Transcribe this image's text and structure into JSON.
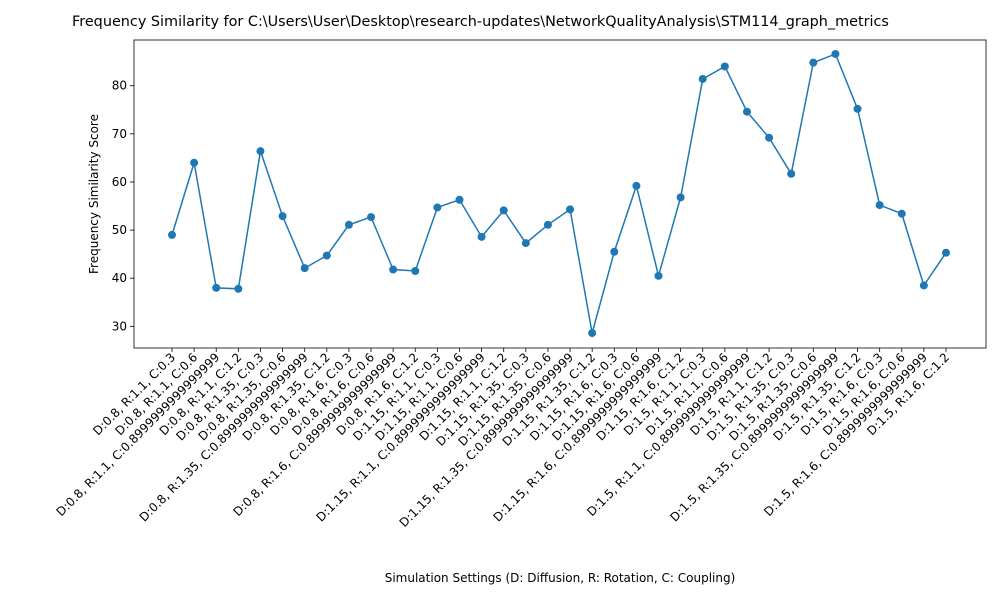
{
  "chart_data": {
    "type": "line",
    "title": "Frequency Similarity for C:\\Users\\User\\Desktop\\research-updates\\NetworkQualityAnalysis\\STM114_graph_metrics",
    "xlabel": "Simulation Settings (D: Diffusion, R: Rotation, C: Coupling)",
    "ylabel": "Frequency Similarity Score",
    "ylim": [
      25.5,
      89.5
    ],
    "yticks": [
      30,
      40,
      50,
      60,
      70,
      80
    ],
    "grid": false,
    "legend": "none",
    "line_color": "#1f77b4",
    "marker": "circle",
    "categories": [
      "D:0.8, R:1.1, C:0.3",
      "D:0.8, R:1.1, C:0.6",
      "D:0.8, R:1.1, C:0.8999999999999999",
      "D:0.8, R:1.1, C:1.2",
      "D:0.8, R:1.35, C:0.3",
      "D:0.8, R:1.35, C:0.6",
      "D:0.8, R:1.35, C:0.8999999999999999",
      "D:0.8, R:1.35, C:1.2",
      "D:0.8, R:1.6, C:0.3",
      "D:0.8, R:1.6, C:0.6",
      "D:0.8, R:1.6, C:0.8999999999999999",
      "D:0.8, R:1.6, C:1.2",
      "D:1.15, R:1.1, C:0.3",
      "D:1.15, R:1.1, C:0.6",
      "D:1.15, R:1.1, C:0.8999999999999999",
      "D:1.15, R:1.1, C:1.2",
      "D:1.15, R:1.35, C:0.3",
      "D:1.15, R:1.35, C:0.6",
      "D:1.15, R:1.35, C:0.8999999999999999",
      "D:1.15, R:1.35, C:1.2",
      "D:1.15, R:1.6, C:0.3",
      "D:1.15, R:1.6, C:0.6",
      "D:1.15, R:1.6, C:0.8999999999999999",
      "D:1.15, R:1.6, C:1.2",
      "D:1.5, R:1.1, C:0.3",
      "D:1.5, R:1.1, C:0.6",
      "D:1.5, R:1.1, C:0.8999999999999999",
      "D:1.5, R:1.1, C:1.2",
      "D:1.5, R:1.35, C:0.3",
      "D:1.5, R:1.35, C:0.6",
      "D:1.5, R:1.35, C:0.8999999999999999",
      "D:1.5, R:1.35, C:1.2",
      "D:1.5, R:1.6, C:0.3",
      "D:1.5, R:1.6, C:0.6",
      "D:1.5, R:1.6, C:0.8999999999999999",
      "D:1.5, R:1.6, C:1.2"
    ],
    "values": [
      49.0,
      64.0,
      38.0,
      37.8,
      66.4,
      52.9,
      42.1,
      44.7,
      51.1,
      52.7,
      41.8,
      41.5,
      54.7,
      56.3,
      48.6,
      54.1,
      47.3,
      51.1,
      54.3,
      28.6,
      45.5,
      59.2,
      40.5,
      56.8,
      81.4,
      84.0,
      74.6,
      69.2,
      61.7,
      84.8,
      86.6,
      75.2,
      55.2,
      53.4,
      38.5,
      45.3
    ]
  }
}
